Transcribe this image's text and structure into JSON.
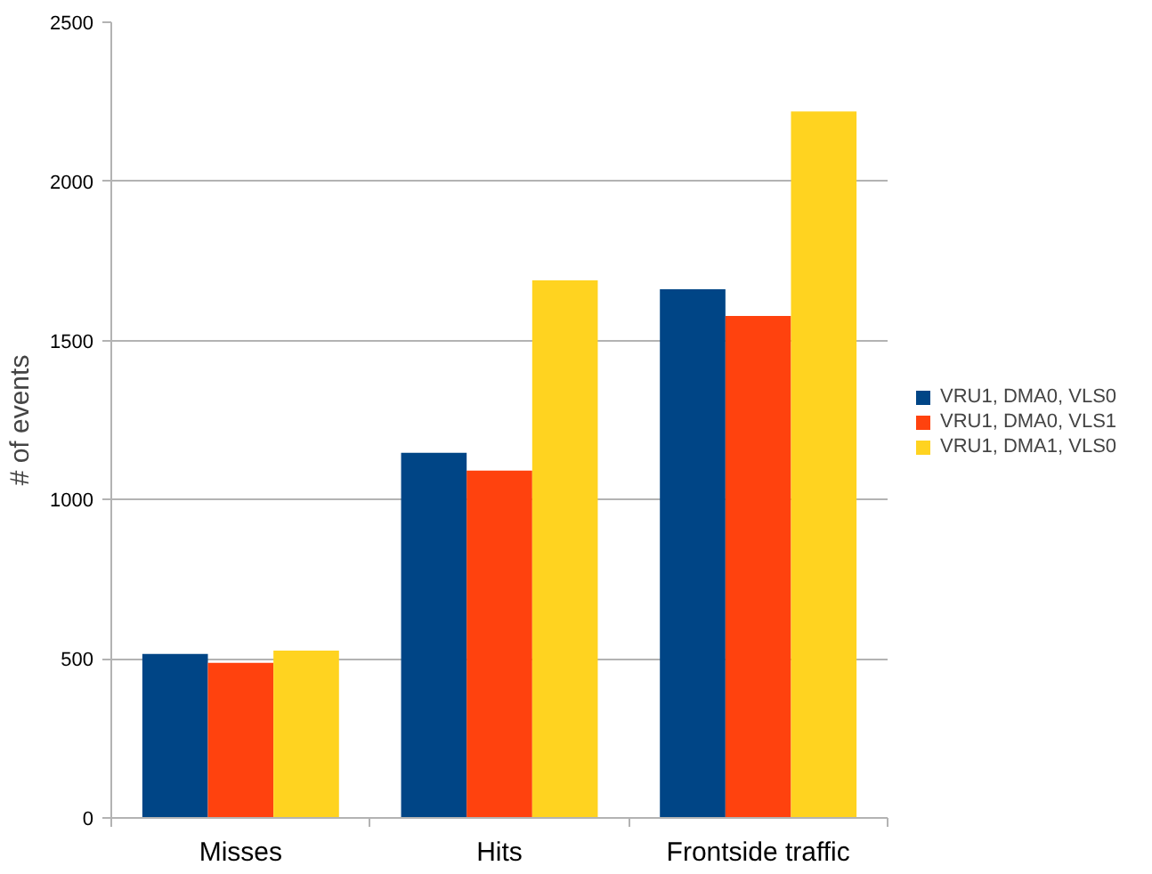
{
  "chart_data": {
    "type": "bar",
    "ylabel": "# of events",
    "categories": [
      "Misses",
      "Hits",
      "Frontside traffic"
    ],
    "series": [
      {
        "name": "VRU1, DMA0, VLS0",
        "color": "#004586",
        "values": [
          515,
          1147,
          1661
        ]
      },
      {
        "name": "VRU1, DMA0, VLS1",
        "color": "#ff420e",
        "values": [
          487,
          1091,
          1577
        ]
      },
      {
        "name": "VRU1, DMA1, VLS0",
        "color": "#ffd320",
        "values": [
          526,
          1689,
          2220
        ]
      }
    ],
    "ylim": [
      0,
      2500
    ],
    "yticks": [
      0,
      500,
      1000,
      1500,
      2000,
      2500
    ],
    "grid": "y",
    "legend": "right"
  }
}
